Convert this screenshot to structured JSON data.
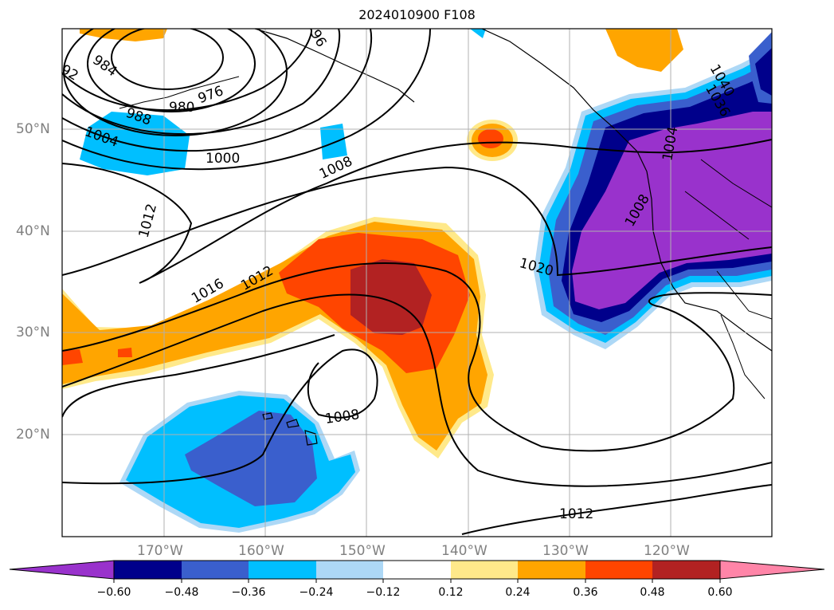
{
  "title": "2024010900 F108",
  "map": {
    "lat_labels": [
      "50°N",
      "40°N",
      "30°N",
      "20°N"
    ],
    "lon_labels": [
      "170°W",
      "160°W",
      "150°W",
      "140°W",
      "130°W",
      "120°W"
    ],
    "contour_labels": [
      "984",
      "980",
      "976",
      "988",
      "1004",
      "1000",
      "1008",
      "1012",
      "1016",
      "1012",
      "1020",
      "1008",
      "1008",
      "1012",
      "1040",
      "1036",
      "92",
      "96",
      "1004"
    ]
  },
  "colorbar": {
    "ticks": [
      "−0.60",
      "−0.48",
      "−0.36",
      "−0.24",
      "−0.12",
      "0.12",
      "0.24",
      "0.36",
      "0.48",
      "0.60"
    ],
    "colors": [
      "#9932cc",
      "#00008b",
      "#3a5fcd",
      "#00bfff",
      "#add8f6",
      "#ffffff",
      "#ffe98a",
      "#ffa500",
      "#ff4500",
      "#b22222",
      "#ff85a8"
    ]
  }
}
